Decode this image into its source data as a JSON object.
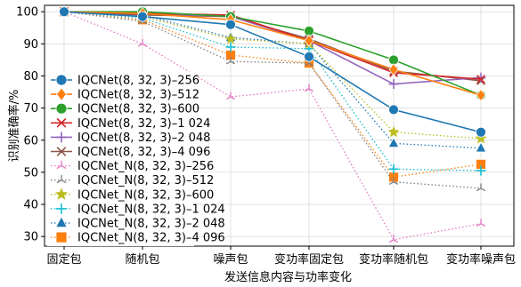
{
  "chart_data": {
    "type": "line",
    "title": "",
    "xlabel": "发送信息内容与功率变化",
    "ylabel": "识别准确率/%",
    "ylim": [
      27,
      102
    ],
    "yticks": [
      30,
      40,
      50,
      60,
      70,
      80,
      90,
      100
    ],
    "categories": [
      "固定包",
      "随机包",
      "噪声包",
      "变功率固定包",
      "变功率随机包",
      "变功率噪声包"
    ],
    "grid": true,
    "legend_position": "left",
    "series": [
      {
        "name": "IQCNet(8, 32, 3)–256",
        "values": [
          100,
          98.5,
          96,
          86,
          69.5,
          62.5
        ],
        "color": "#1f77b4",
        "style": "solid",
        "marker": "circle"
      },
      {
        "name": "IQCNet(8, 32, 3)–512",
        "values": [
          100,
          99.5,
          97.5,
          91,
          82,
          74
        ],
        "color": "#ff7f0e",
        "style": "solid",
        "marker": "diamond"
      },
      {
        "name": "IQCNet(8, 32, 3)–600",
        "values": [
          100,
          100,
          98.5,
          94,
          85,
          74
        ],
        "color": "#2ca02c",
        "style": "solid",
        "marker": "circle"
      },
      {
        "name": "IQCNet(8, 32, 3)–1 024",
        "values": [
          100,
          99.5,
          99,
          91,
          81,
          79
        ],
        "color": "#d62728",
        "style": "solid",
        "marker": "x"
      },
      {
        "name": "IQCNet(8, 32, 3)–2 048",
        "values": [
          100,
          99.5,
          98.5,
          91,
          77.5,
          79.5
        ],
        "color": "#9467bd",
        "style": "solid",
        "marker": "plus"
      },
      {
        "name": "IQCNet(8, 32, 3)–4 096",
        "values": [
          100,
          99,
          98.5,
          91.5,
          81.5,
          78.5
        ],
        "color": "#8c564b",
        "style": "solid",
        "marker": "x"
      },
      {
        "name": "IQCNet_N(8, 32, 3)–256",
        "values": [
          100,
          90,
          73.5,
          76,
          29,
          34
        ],
        "color": "#e377c2",
        "style": "dotted",
        "marker": "tri"
      },
      {
        "name": "IQCNet_N(8, 32, 3)–512",
        "values": [
          100,
          97,
          84.5,
          84,
          47,
          45
        ],
        "color": "#7f7f7f",
        "style": "dotted",
        "marker": "tri"
      },
      {
        "name": "IQCNet_N(8, 32, 3)–600",
        "values": [
          100,
          98.5,
          91.5,
          90,
          62.5,
          60.5
        ],
        "color": "#bcbd22",
        "style": "dotted",
        "marker": "star"
      },
      {
        "name": "IQCNet_N(8, 32, 3)–1 024",
        "values": [
          100,
          98,
          89,
          88.5,
          51,
          50.5
        ],
        "color": "#17becf",
        "style": "dotted",
        "marker": "plus"
      },
      {
        "name": "IQCNet_N(8, 32, 3)–2 048",
        "values": [
          100,
          99,
          92,
          90,
          59,
          57.5
        ],
        "color": "#1f77b4",
        "style": "dotted",
        "marker": "triangle"
      },
      {
        "name": "IQCNet_N(8, 32, 3)–4 096",
        "values": [
          100,
          97.5,
          86.5,
          84,
          48.5,
          52.5
        ],
        "color": "#ff7f0e",
        "style": "dotted",
        "marker": "square"
      }
    ]
  }
}
